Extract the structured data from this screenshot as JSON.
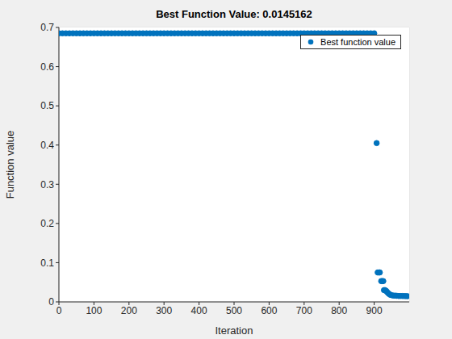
{
  "chart_data": {
    "type": "scatter",
    "title": "Best Function Value: 0.0145162",
    "xlabel": "Iteration",
    "ylabel": "Function value",
    "x": [
      0,
      10,
      20,
      30,
      40,
      50,
      60,
      70,
      80,
      90,
      100,
      110,
      120,
      130,
      140,
      150,
      160,
      170,
      180,
      190,
      200,
      210,
      220,
      230,
      240,
      250,
      260,
      270,
      280,
      290,
      300,
      310,
      320,
      330,
      340,
      350,
      360,
      370,
      380,
      390,
      400,
      410,
      420,
      430,
      440,
      450,
      460,
      470,
      480,
      490,
      500,
      510,
      520,
      530,
      540,
      550,
      560,
      570,
      580,
      590,
      600,
      610,
      620,
      630,
      640,
      650,
      660,
      670,
      680,
      690,
      700,
      710,
      720,
      730,
      740,
      750,
      760,
      770,
      780,
      790,
      800,
      810,
      820,
      830,
      840,
      850,
      860,
      870,
      880,
      890,
      900,
      907,
      910,
      913,
      916,
      920,
      923,
      926,
      928,
      931,
      934,
      937,
      940,
      943,
      946,
      950,
      955,
      960,
      965,
      970,
      975,
      980,
      985,
      990,
      995
    ],
    "series": [
      {
        "name": "Best function value",
        "color": "#0072bd",
        "marker": "circle",
        "values": [
          0.685,
          0.685,
          0.685,
          0.685,
          0.685,
          0.685,
          0.685,
          0.685,
          0.685,
          0.685,
          0.685,
          0.685,
          0.685,
          0.685,
          0.685,
          0.685,
          0.685,
          0.685,
          0.685,
          0.685,
          0.685,
          0.685,
          0.685,
          0.685,
          0.685,
          0.685,
          0.685,
          0.685,
          0.685,
          0.685,
          0.685,
          0.685,
          0.685,
          0.685,
          0.685,
          0.685,
          0.685,
          0.685,
          0.685,
          0.685,
          0.685,
          0.685,
          0.685,
          0.685,
          0.685,
          0.685,
          0.685,
          0.685,
          0.685,
          0.685,
          0.685,
          0.685,
          0.685,
          0.685,
          0.685,
          0.685,
          0.685,
          0.685,
          0.685,
          0.685,
          0.685,
          0.685,
          0.685,
          0.685,
          0.685,
          0.685,
          0.685,
          0.685,
          0.685,
          0.685,
          0.685,
          0.685,
          0.685,
          0.685,
          0.685,
          0.685,
          0.685,
          0.685,
          0.685,
          0.685,
          0.685,
          0.685,
          0.685,
          0.685,
          0.685,
          0.685,
          0.685,
          0.685,
          0.685,
          0.685,
          0.685,
          0.405,
          0.075,
          0.075,
          0.075,
          0.053,
          0.053,
          0.053,
          0.03,
          0.03,
          0.028,
          0.025,
          0.022,
          0.02,
          0.018,
          0.017,
          0.016,
          0.016,
          0.0155,
          0.015,
          0.015,
          0.015,
          0.0148,
          0.0147,
          0.0145162
        ]
      }
    ],
    "xlim": [
      0,
      1000
    ],
    "xticks": [
      0,
      100,
      200,
      300,
      400,
      500,
      600,
      700,
      800,
      900
    ],
    "ylim": [
      0,
      0.7
    ],
    "yticks": [
      0,
      0.1,
      0.2,
      0.3,
      0.4,
      0.5,
      0.6,
      0.7
    ],
    "grid": true,
    "legend": "upper right"
  }
}
